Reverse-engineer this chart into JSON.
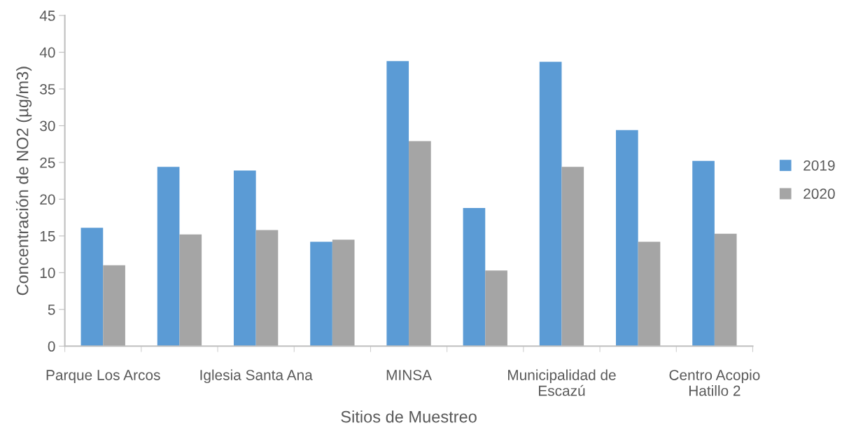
{
  "chart_data": {
    "type": "bar",
    "xlabel": "Sitios de Muestreo",
    "ylabel": "Concentración de NO2 (µg/m3)",
    "categories": [
      "Parque Los Arcos",
      null,
      "Iglesia Santa Ana",
      null,
      "MINSA",
      null,
      "Municipalidad de\nEscazú",
      null,
      "Centro Acopio\nHatillo 2"
    ],
    "series": [
      {
        "name": "2019",
        "color": "#5b9bd5",
        "values": [
          16.1,
          24.4,
          23.9,
          14.2,
          38.8,
          18.8,
          38.7,
          29.4,
          25.2
        ]
      },
      {
        "name": "2020",
        "color": "#a5a5a5",
        "values": [
          11.0,
          15.2,
          15.8,
          14.5,
          27.9,
          10.3,
          24.4,
          14.2,
          15.3
        ]
      }
    ],
    "ylim": [
      0,
      45
    ],
    "yticks": [
      0,
      5,
      10,
      15,
      20,
      25,
      30,
      35,
      40,
      45
    ],
    "grid": false,
    "legend": "right"
  }
}
